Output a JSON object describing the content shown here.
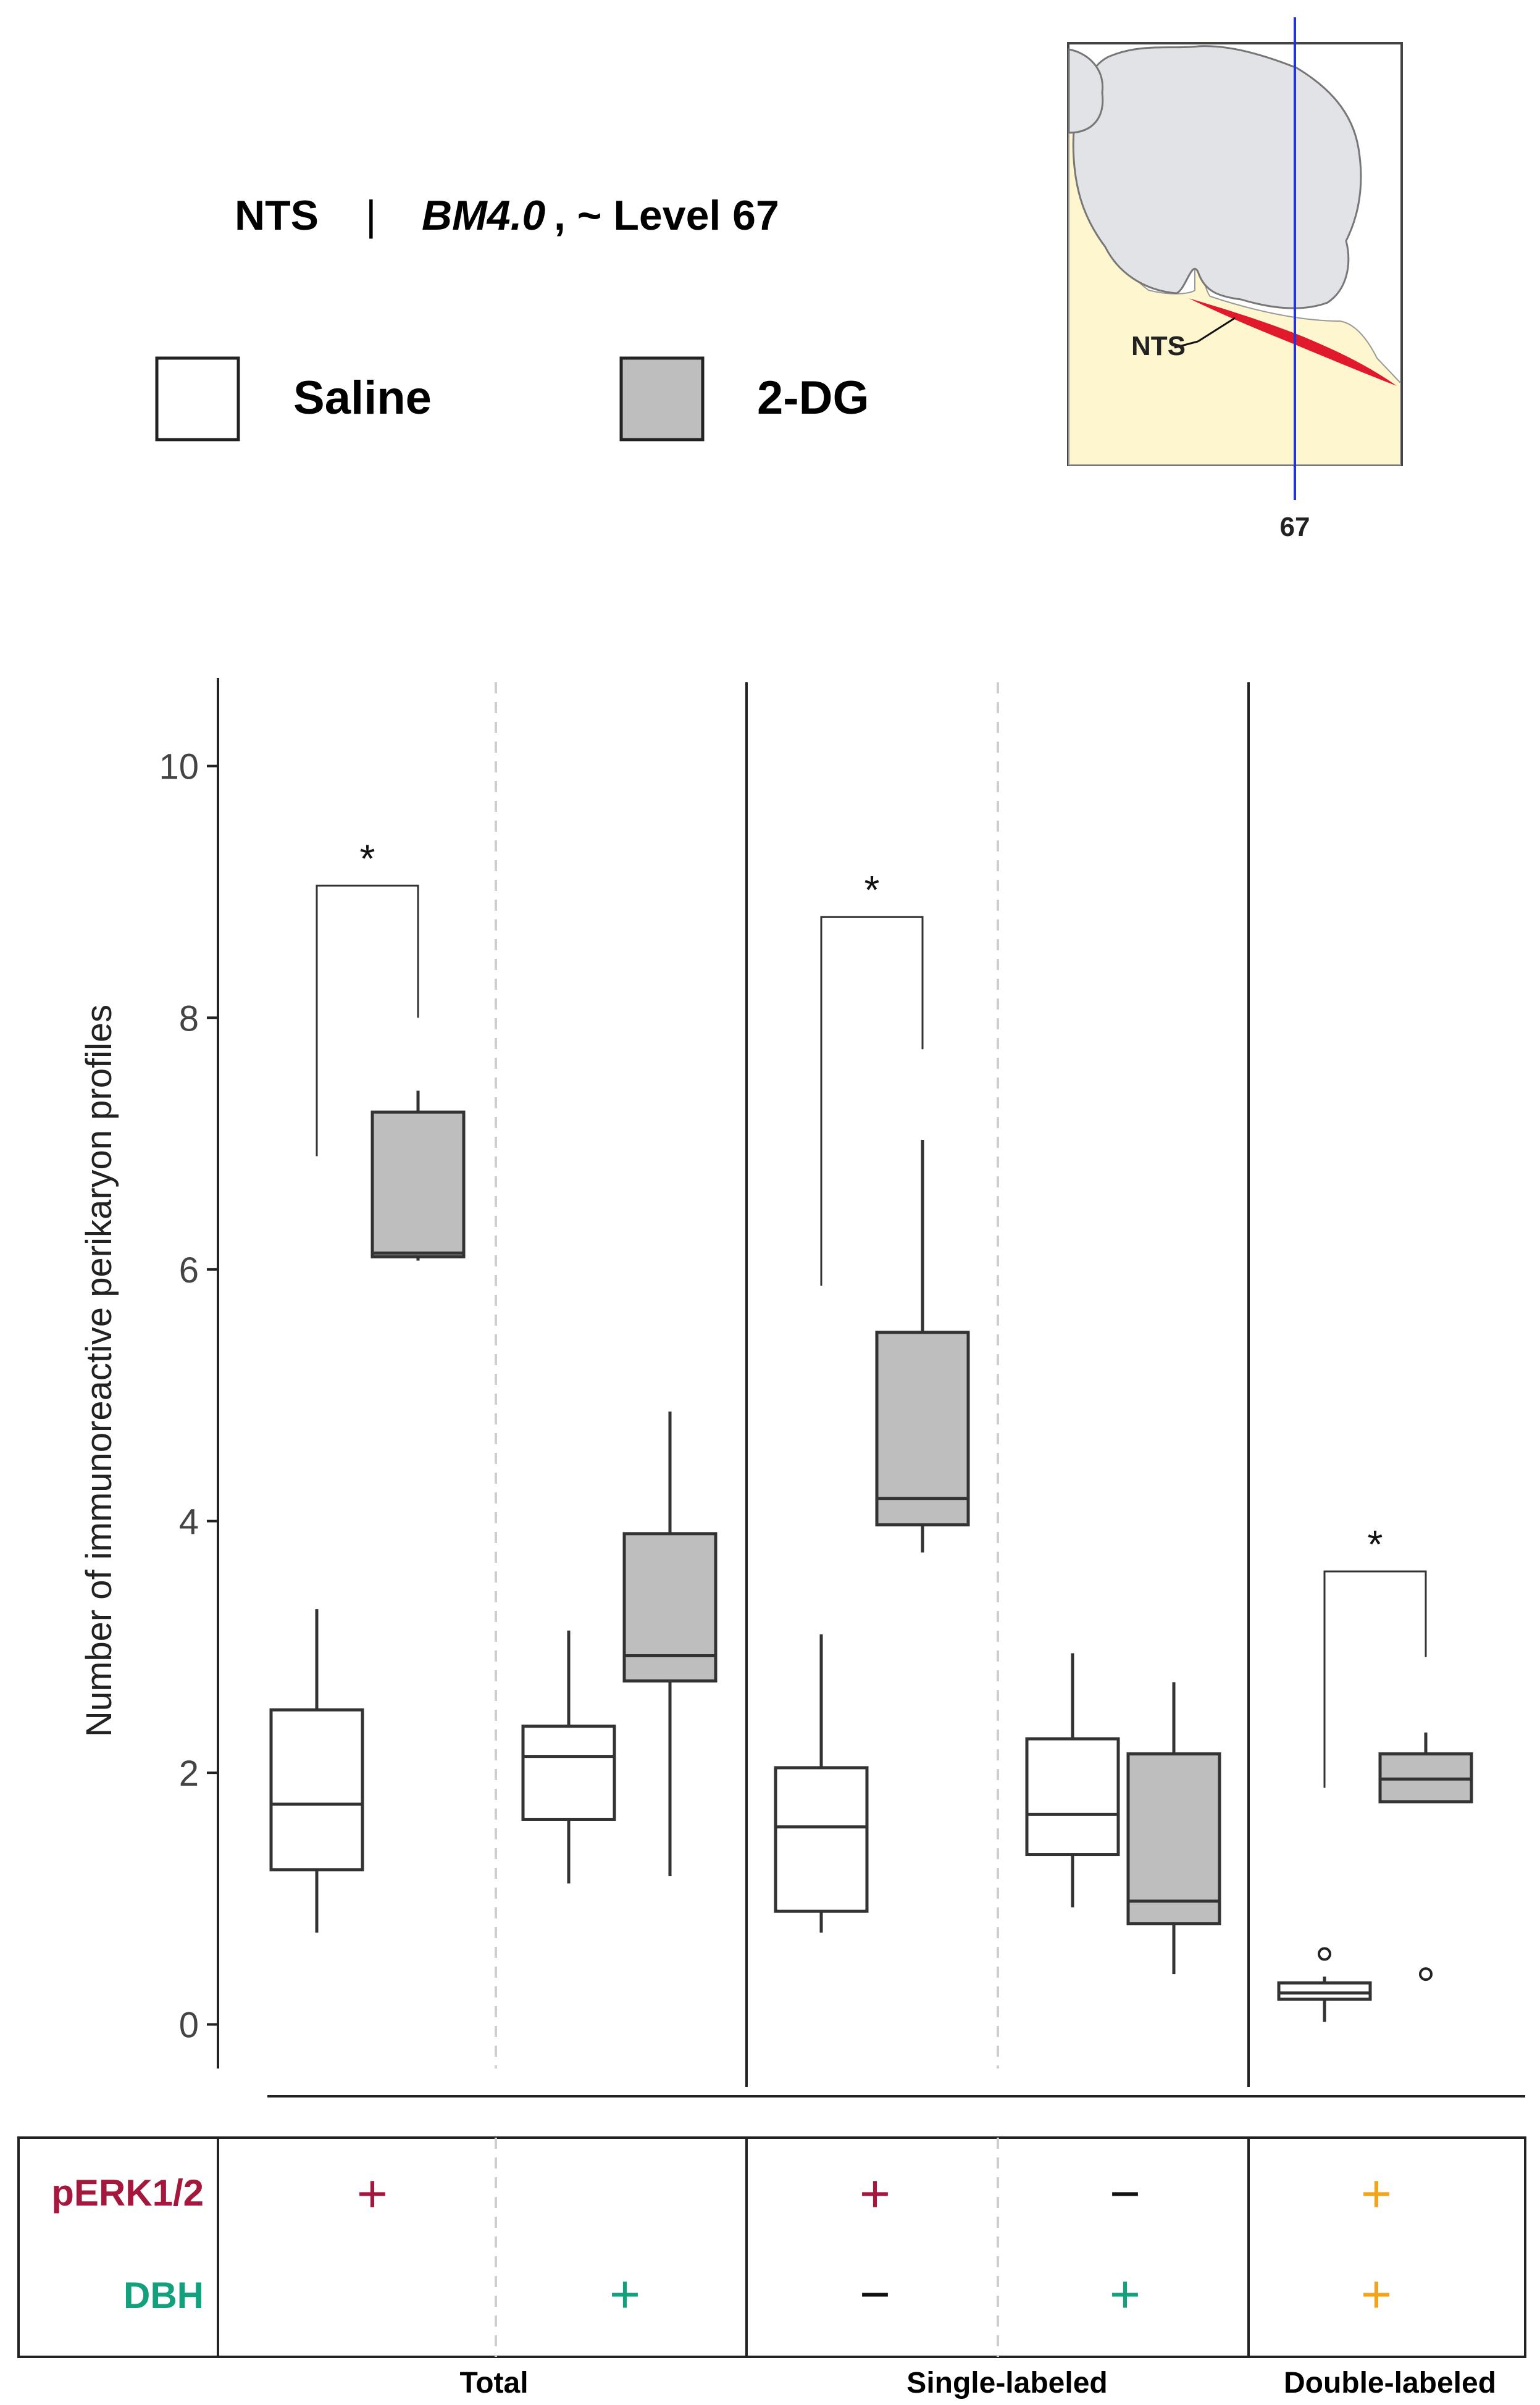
{
  "header": {
    "region": "NTS",
    "separator": "|",
    "atlas": "BM4.0",
    "level_text": ", ~ Level 67"
  },
  "legend": [
    {
      "label": "Saline",
      "fill": "#ffffff"
    },
    {
      "label": "2-DG",
      "fill": "#bebebe"
    }
  ],
  "inset": {
    "structure_label": "NTS",
    "level_label": "67",
    "colors": {
      "tissue": "#fdf6cf",
      "cerebellum": "#e2e3e6",
      "nts": "#e0192d",
      "level_line": "#2233dd"
    }
  },
  "chart_data": {
    "type": "box",
    "ylabel": "Number of immunoreactive perikaryon profiles",
    "ylim": [
      -0.35,
      10.7
    ],
    "yticks": [
      "0",
      "2",
      "4",
      "6",
      "8",
      "10"
    ],
    "series": [
      {
        "name": "Saline",
        "fill": "#ffffff"
      },
      {
        "name": "2-DG",
        "fill": "#bebebe"
      }
    ],
    "groups": [
      {
        "name": "Total pERK1/2+",
        "boxes": [
          {
            "series": "Saline",
            "low": 0.73,
            "q1": 1.23,
            "median": 1.75,
            "q3": 2.5,
            "high": 3.3,
            "outliers": []
          },
          {
            "series": "2-DG",
            "low": 6.07,
            "q1": 6.1,
            "median": 6.13,
            "q3": 7.25,
            "high": 7.42,
            "outliers": []
          }
        ],
        "significance": {
          "label": "*",
          "y": 9.05,
          "left_end": 6.9,
          "right_end": 8.0
        }
      },
      {
        "name": "Total DBH+",
        "boxes": [
          {
            "series": "Saline",
            "low": 1.12,
            "q1": 1.63,
            "median": 2.13,
            "q3": 2.37,
            "high": 3.13,
            "outliers": []
          },
          {
            "series": "2-DG",
            "low": 1.18,
            "q1": 2.73,
            "median": 2.93,
            "q3": 3.9,
            "high": 4.87,
            "outliers": []
          }
        ]
      },
      {
        "name": "pERK1/2+ DBH-",
        "boxes": [
          {
            "series": "Saline",
            "low": 0.73,
            "q1": 0.9,
            "median": 1.57,
            "q3": 2.04,
            "high": 3.1,
            "outliers": []
          },
          {
            "series": "2-DG",
            "low": 3.75,
            "q1": 3.97,
            "median": 4.18,
            "q3": 5.5,
            "high": 7.03,
            "outliers": []
          }
        ],
        "significance": {
          "label": "*",
          "y": 8.8,
          "left_end": 5.87,
          "right_end": 7.75
        }
      },
      {
        "name": "pERK1/2- DBH+",
        "boxes": [
          {
            "series": "Saline",
            "low": 0.93,
            "q1": 1.35,
            "median": 1.67,
            "q3": 2.27,
            "high": 2.95,
            "outliers": []
          },
          {
            "series": "2-DG",
            "low": 0.4,
            "q1": 0.8,
            "median": 0.98,
            "q3": 2.15,
            "high": 2.72,
            "outliers": []
          }
        ]
      },
      {
        "name": "pERK1/2+ DBH+",
        "boxes": [
          {
            "series": "Saline",
            "low": 0.02,
            "q1": 0.2,
            "median": 0.25,
            "q3": 0.33,
            "high": 0.38,
            "outliers": [
              0.56
            ]
          },
          {
            "series": "2-DG",
            "low": 1.77,
            "q1": 1.77,
            "median": 1.95,
            "q3": 2.15,
            "high": 2.32,
            "outliers": [
              0.4
            ]
          }
        ],
        "significance": {
          "label": "*",
          "y": 3.6,
          "left_end": 1.88,
          "right_end": 2.92
        }
      }
    ]
  },
  "marker_table": {
    "rows": [
      {
        "label": "pERK1/2",
        "color": "#a3183c"
      },
      {
        "label": "DBH",
        "color": "#13a07c"
      }
    ],
    "cells": [
      [
        "+",
        "",
        "+",
        "−",
        "+"
      ],
      [
        "",
        "+",
        "−",
        "+",
        "+"
      ]
    ],
    "cell_colors": [
      [
        "#a3183c",
        "",
        "#a3183c",
        "#111111",
        "#f2a51c"
      ],
      [
        "",
        "#13a07c",
        "#111111",
        "#13a07c",
        "#f2a51c"
      ]
    ],
    "sections": [
      "Total",
      "Single-labeled",
      "Double-labeled"
    ]
  }
}
